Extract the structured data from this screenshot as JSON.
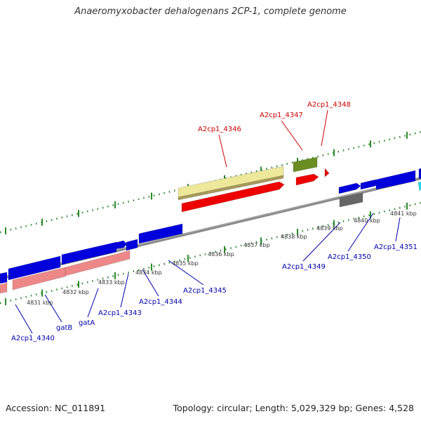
{
  "title": "Anaeromyxobacter dehalogenans 2CP-1, complete genome",
  "footer": {
    "accession": "Accession: NC_011891",
    "summary": "Topology: circular; Length: 5,029,329 bp; Genes: 4,528"
  },
  "colors": {
    "axis": "#888888",
    "tick": "#2a8a2a",
    "forward_label": "#cc0000",
    "reverse_label": "#0000aa",
    "gene_red": "#ee0000",
    "gene_blue": "#0000dd",
    "gene_pink": "#ee8888",
    "gene_khaki": "#eee89a",
    "gene_olive": "#6b8e23",
    "gene_gray": "#666666",
    "gene_cyan": "#22ddee"
  },
  "kbp_ticks": [
    {
      "label": "4831 kbp",
      "pos": 4831
    },
    {
      "label": "4832 kbp",
      "pos": 4832
    },
    {
      "label": "4833 kbp",
      "pos": 4833
    },
    {
      "label": "4834 kbp",
      "pos": 4834
    },
    {
      "label": "4835 kbp",
      "pos": 4835
    },
    {
      "label": "4836 kbp",
      "pos": 4836
    },
    {
      "label": "4837 kbp",
      "pos": 4837
    },
    {
      "label": "4838 kbp",
      "pos": 4838
    },
    {
      "label": "4839 kbp",
      "pos": 4839
    },
    {
      "label": "4840 kbp",
      "pos": 4840
    },
    {
      "label": "4841 kbp",
      "pos": 4841
    }
  ],
  "labels": [
    {
      "text": "A2cp1_4346",
      "strand": "forward",
      "gene": "g4346"
    },
    {
      "text": "A2cp1_4347",
      "strand": "forward",
      "gene": "g4347"
    },
    {
      "text": "A2cp1_4348",
      "strand": "forward",
      "gene": "g4348"
    },
    {
      "text": "A2cp1_4340",
      "strand": "reverse",
      "gene": "g4340"
    },
    {
      "text": "gatB",
      "strand": "reverse",
      "gene": "gatB"
    },
    {
      "text": "gatA",
      "strand": "reverse",
      "gene": "gatA"
    },
    {
      "text": "A2cp1_4343",
      "strand": "reverse",
      "gene": "g4343"
    },
    {
      "text": "A2cp1_4344",
      "strand": "reverse",
      "gene": "g4344"
    },
    {
      "text": "A2cp1_4345",
      "strand": "reverse",
      "gene": "g4345"
    },
    {
      "text": "A2cp1_4349",
      "strand": "reverse",
      "gene": "g4349"
    },
    {
      "text": "A2cp1_4350",
      "strand": "reverse",
      "gene": "g4350"
    },
    {
      "text": "A2cp1_4351",
      "strand": "reverse",
      "gene": "g4351"
    }
  ]
}
